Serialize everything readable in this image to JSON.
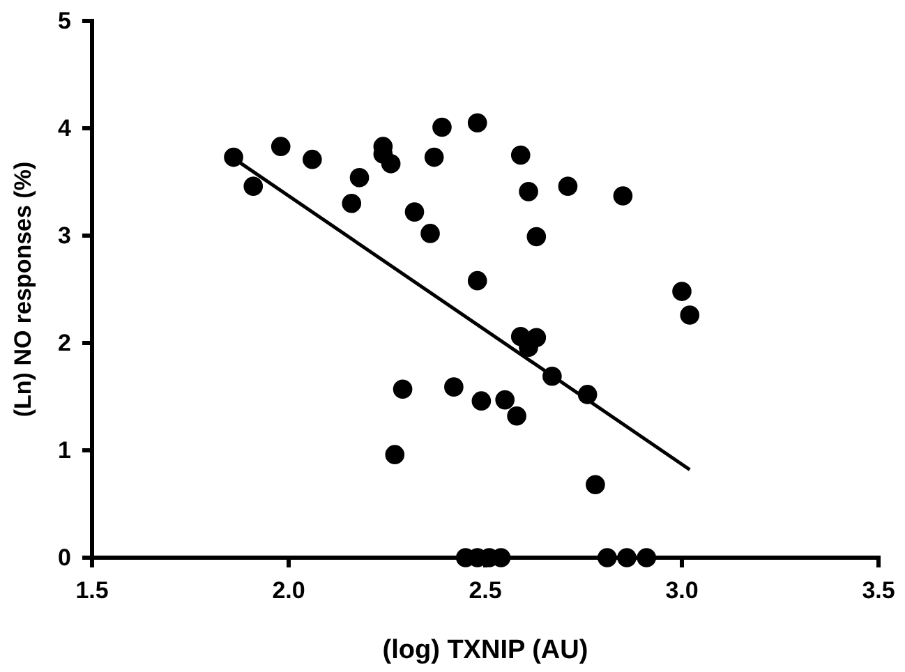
{
  "chart_data": {
    "type": "scatter",
    "xlabel": "(log) TXNIP (AU)",
    "ylabel": "(Ln) NO responses (%)",
    "xlim": [
      1.5,
      3.5
    ],
    "ylim": [
      0,
      5
    ],
    "xticks": [
      {
        "value": 1.5,
        "label": "1.5"
      },
      {
        "value": 2,
        "label": "2.0"
      },
      {
        "value": 2.5,
        "label": "2.5"
      },
      {
        "value": 3,
        "label": "3.0"
      },
      {
        "value": 3.5,
        "label": "3.5"
      }
    ],
    "yticks": [
      0,
      1,
      2,
      3,
      4,
      5
    ],
    "grid": false,
    "marker": "circle",
    "series": [
      {
        "color": "#000000",
        "x": [
          1.86,
          1.91,
          1.98,
          2.06,
          2.18,
          2.16,
          2.24,
          2.24,
          2.26,
          2.32,
          2.36,
          2.37,
          2.39,
          2.48,
          2.48,
          2.29,
          2.27,
          2.42,
          2.49,
          2.55,
          2.58,
          2.59,
          2.61,
          2.71,
          2.85,
          2.63,
          3.0,
          3.02,
          2.59,
          2.63,
          2.61,
          2.67,
          2.76,
          2.78,
          2.45,
          2.48,
          2.51,
          2.54,
          2.81,
          2.86,
          2.91
        ],
        "values": [
          3.73,
          3.46,
          3.83,
          3.71,
          3.54,
          3.3,
          3.83,
          3.76,
          3.67,
          3.22,
          3.02,
          3.73,
          4.01,
          4.05,
          2.58,
          1.57,
          0.96,
          1.59,
          1.46,
          1.47,
          1.32,
          3.75,
          3.41,
          3.46,
          3.37,
          2.99,
          2.48,
          2.26,
          2.06,
          2.05,
          1.96,
          1.69,
          1.52,
          0.68,
          0,
          0,
          0,
          0,
          0,
          0,
          0
        ]
      },
      {
        "type": "line",
        "color": "#000000",
        "marker": "none",
        "x": [
          1.86,
          3.02
        ],
        "values": [
          3.72,
          0.82
        ]
      }
    ]
  }
}
